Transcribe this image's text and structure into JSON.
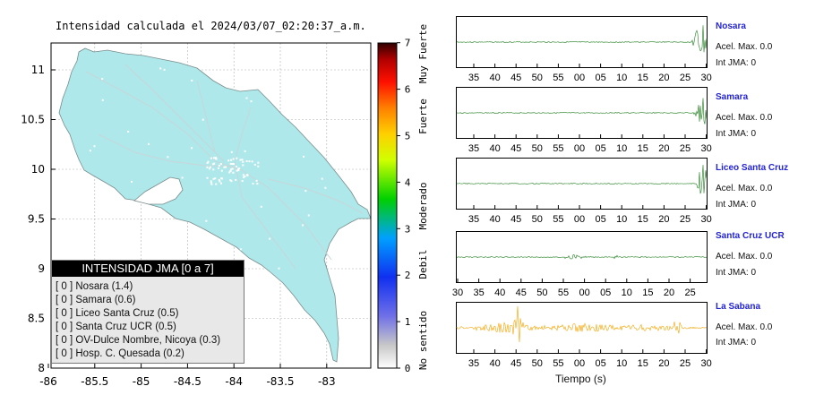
{
  "map": {
    "title": "Intensidad calculada el 2024/03/07_02:20:37_a.m.",
    "x_ticks": [
      "-86",
      "-85.5",
      "-85",
      "-84.5",
      "-84",
      "-83.5",
      "-83"
    ],
    "y_ticks": [
      "11",
      "10.5",
      "10",
      "9.5",
      "9",
      "8.5",
      "8"
    ],
    "land_color": "#aee8ea",
    "sea_color": "#ffffff"
  },
  "colorbar": {
    "ticks": [
      "0",
      "1",
      "2",
      "3",
      "4",
      "5",
      "6",
      "7"
    ],
    "labels": [
      "No sentido",
      "Debil",
      "Moderado",
      "Fuerte",
      "Muy Fuerte"
    ]
  },
  "legend": {
    "title": "INTENSIDAD JMA [0 a 7]",
    "items": [
      "[ 0 ]  Nosara (1.4)",
      "[ 0 ]  Samara (0.6)",
      "[ 0 ]  Liceo Santa Cruz (0.5)",
      "[ 0 ]  Santa Cruz UCR (0.5)",
      "[ 0 ]  OV-Dulce Nombre, Nicoya (0.3)",
      "[ 0 ]  Hosp. C. Quesada (0.2)"
    ]
  },
  "waveforms": {
    "x_label": "Tiempo (s)",
    "stations": [
      {
        "name": "Nosara",
        "acel": "Acel. Max. 0.0",
        "jma": "Int JMA: 0",
        "color": "#1e7d1e",
        "ticks": [
          "35",
          "40",
          "45",
          "50",
          "55",
          "00",
          "05",
          "10",
          "15",
          "20",
          "25",
          "30"
        ]
      },
      {
        "name": "Samara",
        "acel": "Acel. Max. 0.0",
        "jma": "Int JMA: 0",
        "color": "#1e7d1e",
        "ticks": [
          "35",
          "40",
          "45",
          "50",
          "55",
          "00",
          "05",
          "10",
          "15",
          "20",
          "25",
          "30"
        ]
      },
      {
        "name": "Liceo Santa Cruz",
        "acel": "Acel. Max. 0.0",
        "jma": "Int JMA: 0",
        "color": "#1e7d1e",
        "ticks": [
          "35",
          "40",
          "45",
          "50",
          "55",
          "00",
          "05",
          "10",
          "15",
          "20",
          "25",
          "30"
        ]
      },
      {
        "name": "Santa Cruz UCR",
        "acel": "Acel. Max. 0.0",
        "jma": "Int JMA: 0",
        "color": "#1e7d1e",
        "ticks": [
          "30",
          "35",
          "40",
          "45",
          "50",
          "55",
          "00",
          "05",
          "10",
          "15",
          "20",
          "25"
        ]
      },
      {
        "name": "La Sabana",
        "acel": "Acel. Max. 0.0",
        "jma": "Int JMA: 0",
        "color": "#f4a300",
        "ticks": [
          "35",
          "40",
          "45",
          "50",
          "55",
          "00",
          "05",
          "10",
          "15",
          "20",
          "25",
          "30"
        ]
      }
    ]
  }
}
